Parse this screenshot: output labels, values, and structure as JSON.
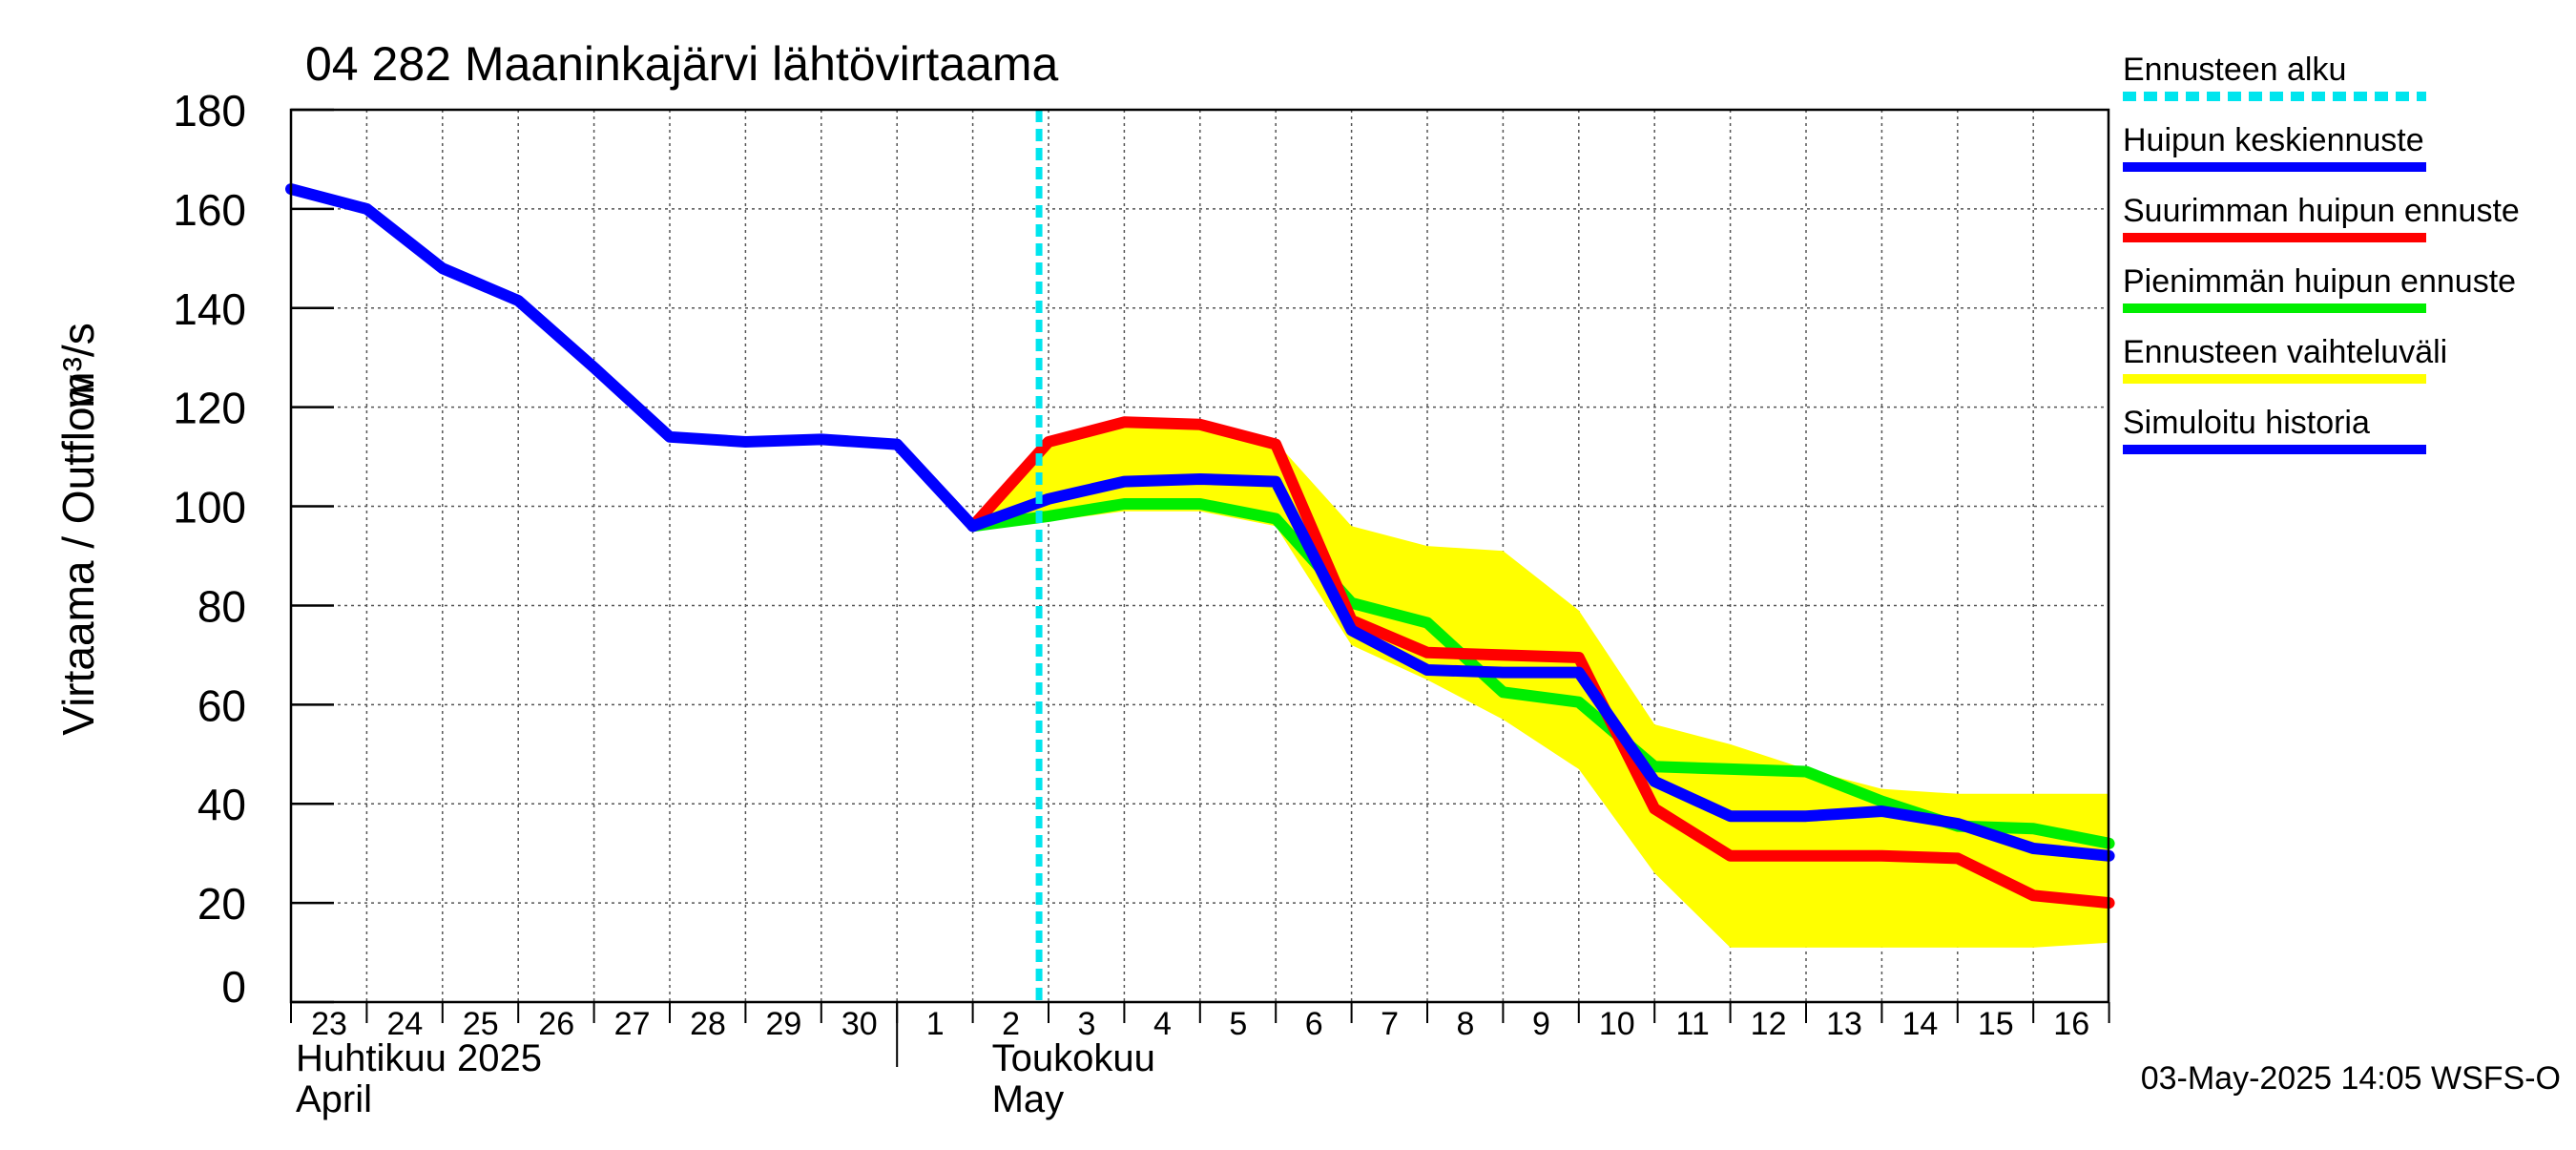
{
  "chart_data": {
    "type": "line",
    "title": "04 282 Maaninkajärvi lähtövirtaama",
    "ylabel": "Virtaama / Outflow",
    "yunit": "m³/s",
    "ylim": [
      0,
      180
    ],
    "yticks": [
      0,
      20,
      40,
      60,
      80,
      100,
      120,
      140,
      160,
      180
    ],
    "grid": true,
    "legend_position": "right",
    "x_day_labels": [
      "23",
      "24",
      "25",
      "26",
      "27",
      "28",
      "29",
      "30",
      "1",
      "2",
      "3",
      "4",
      "5",
      "6",
      "7",
      "8",
      "9",
      "10",
      "11",
      "12",
      "13",
      "14",
      "15",
      "16"
    ],
    "month_labels": [
      {
        "fi": "Huhtikuu  2025",
        "en": "April"
      },
      {
        "fi": "Toukokuu",
        "en": "May"
      }
    ],
    "forecast_start": "2025-05-02 21:00",
    "x": [
      "2025-04-23",
      "2025-04-24",
      "2025-04-25",
      "2025-04-26",
      "2025-04-27",
      "2025-04-28",
      "2025-04-29",
      "2025-04-30",
      "2025-05-01",
      "2025-05-02",
      "2025-05-03",
      "2025-05-04",
      "2025-05-05",
      "2025-05-06",
      "2025-05-07",
      "2025-05-08",
      "2025-05-09",
      "2025-05-10",
      "2025-05-11",
      "2025-05-12",
      "2025-05-13",
      "2025-05-14",
      "2025-05-15",
      "2025-05-16",
      "2025-05-17"
    ],
    "series": [
      {
        "name": "Ennusteen vaihteluväli",
        "color": "#ffff00",
        "kind": "band",
        "upper": [
          null,
          null,
          null,
          null,
          null,
          null,
          null,
          null,
          null,
          96,
          113,
          117,
          116,
          113,
          96,
          92,
          91,
          79,
          56,
          52,
          47,
          43,
          42,
          42,
          42
        ],
        "lower": [
          null,
          null,
          null,
          null,
          null,
          null,
          null,
          null,
          null,
          96,
          97,
          99,
          99,
          96,
          72,
          65,
          57,
          47,
          26,
          11,
          11,
          11,
          11,
          11,
          12
        ]
      },
      {
        "name": "Pienimmän huipun ennuste",
        "color": "#00ee00",
        "kind": "line",
        "values": [
          null,
          null,
          null,
          null,
          null,
          null,
          null,
          null,
          null,
          96,
          98,
          100.5,
          100.5,
          97.5,
          80.5,
          76.5,
          62.5,
          60.5,
          47.5,
          47,
          46.5,
          40.5,
          35.5,
          35,
          32
        ]
      },
      {
        "name": "Suurimman huipun ennuste",
        "color": "#ff0000",
        "kind": "line",
        "values": [
          null,
          null,
          null,
          null,
          null,
          null,
          null,
          null,
          null,
          96,
          113,
          117,
          116.5,
          112.5,
          77,
          70.5,
          70,
          69.5,
          39,
          29.5,
          29.5,
          29.5,
          29,
          21.5,
          20
        ]
      },
      {
        "name": "Huipun keskiennuste",
        "color": "#0000ff",
        "kind": "line",
        "values": [
          null,
          null,
          null,
          null,
          null,
          null,
          null,
          null,
          null,
          96,
          101.5,
          105,
          105.5,
          105,
          75,
          67,
          66.5,
          66.5,
          44.5,
          37.5,
          37.5,
          38.5,
          36,
          31,
          29.5
        ]
      },
      {
        "name": "Simuloitu historia",
        "color": "#0000ff",
        "kind": "line",
        "values": [
          164,
          160,
          148,
          141.5,
          128,
          114,
          113,
          113.5,
          112.5,
          96,
          null,
          null,
          null,
          null,
          null,
          null,
          null,
          null,
          null,
          null,
          null,
          null,
          null,
          null,
          null
        ]
      }
    ],
    "legend": [
      {
        "label": "Ennusteen alku",
        "color": "#00e5ee",
        "style": "dashed"
      },
      {
        "label": "Huipun keskiennuste",
        "color": "#0000ff",
        "style": "solid"
      },
      {
        "label": "Suurimman huipun ennuste",
        "color": "#ff0000",
        "style": "solid"
      },
      {
        "label": "Pienimmän huipun ennuste",
        "color": "#00ee00",
        "style": "solid"
      },
      {
        "label": "Ennusteen vaihteluväli",
        "color": "#ffff00",
        "style": "solid"
      },
      {
        "label": "Simuloitu historia",
        "color": "#0000ff",
        "style": "solid"
      }
    ],
    "footer": "03-May-2025 14:05 WSFS-O"
  }
}
